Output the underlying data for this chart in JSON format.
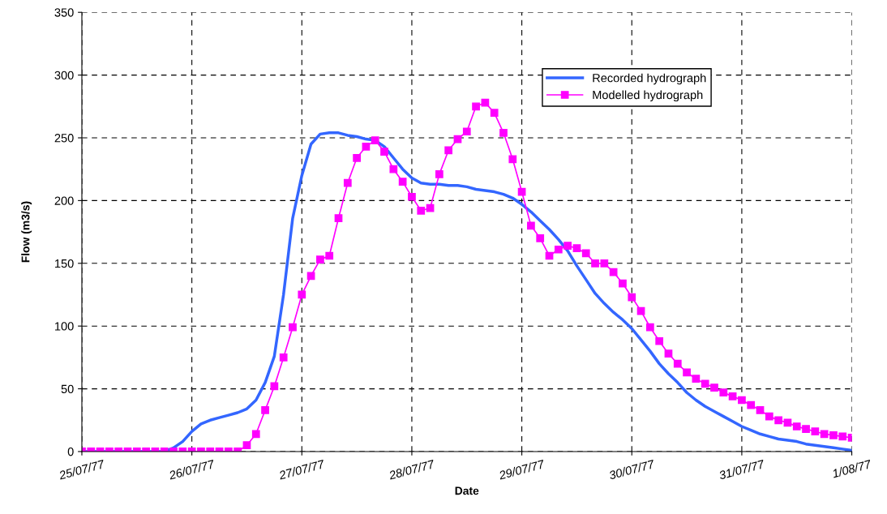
{
  "chart_data": {
    "type": "line",
    "xlabel": "Date",
    "ylabel": "Flow (m3/s)",
    "x": [
      "1977-07-25T00:00",
      "1977-07-25T02:00",
      "1977-07-25T04:00",
      "1977-07-25T06:00",
      "1977-07-25T08:00",
      "1977-07-25T10:00",
      "1977-07-25T12:00",
      "1977-07-25T14:00",
      "1977-07-25T16:00",
      "1977-07-25T18:00",
      "1977-07-25T20:00",
      "1977-07-25T22:00",
      "1977-07-26T00:00",
      "1977-07-26T02:00",
      "1977-07-26T04:00",
      "1977-07-26T06:00",
      "1977-07-26T08:00",
      "1977-07-26T10:00",
      "1977-07-26T12:00",
      "1977-07-26T14:00",
      "1977-07-26T16:00",
      "1977-07-26T18:00",
      "1977-07-26T20:00",
      "1977-07-26T22:00",
      "1977-07-27T00:00",
      "1977-07-27T02:00",
      "1977-07-27T04:00",
      "1977-07-27T06:00",
      "1977-07-27T08:00",
      "1977-07-27T10:00",
      "1977-07-27T12:00",
      "1977-07-27T14:00",
      "1977-07-27T16:00",
      "1977-07-27T18:00",
      "1977-07-27T20:00",
      "1977-07-27T22:00",
      "1977-07-28T00:00",
      "1977-07-28T02:00",
      "1977-07-28T04:00",
      "1977-07-28T06:00",
      "1977-07-28T08:00",
      "1977-07-28T10:00",
      "1977-07-28T12:00",
      "1977-07-28T14:00",
      "1977-07-28T16:00",
      "1977-07-28T18:00",
      "1977-07-28T20:00",
      "1977-07-28T22:00",
      "1977-07-29T00:00",
      "1977-07-29T02:00",
      "1977-07-29T04:00",
      "1977-07-29T06:00",
      "1977-07-29T08:00",
      "1977-07-29T10:00",
      "1977-07-29T12:00",
      "1977-07-29T14:00",
      "1977-07-29T16:00",
      "1977-07-29T18:00",
      "1977-07-29T20:00",
      "1977-07-29T22:00",
      "1977-07-30T00:00",
      "1977-07-30T02:00",
      "1977-07-30T04:00",
      "1977-07-30T06:00",
      "1977-07-30T08:00",
      "1977-07-30T10:00",
      "1977-07-30T12:00",
      "1977-07-30T14:00",
      "1977-07-30T16:00",
      "1977-07-30T18:00",
      "1977-07-30T20:00",
      "1977-07-30T22:00",
      "1977-07-31T00:00",
      "1977-07-31T02:00",
      "1977-07-31T04:00",
      "1977-07-31T06:00",
      "1977-07-31T08:00",
      "1977-07-31T10:00",
      "1977-07-31T12:00",
      "1977-07-31T14:00",
      "1977-07-31T16:00",
      "1977-07-31T18:00",
      "1977-07-31T20:00",
      "1977-07-31T22:00",
      "1977-08-01T00:00"
    ],
    "series": [
      {
        "name": "Recorded hydrograph",
        "color": "#3366ff",
        "marker": "none",
        "values": [
          0,
          0,
          0,
          0,
          0,
          0,
          0,
          0,
          0,
          0,
          3,
          8,
          16,
          22,
          25,
          27,
          29,
          31,
          34,
          41,
          55,
          76,
          125,
          186,
          220,
          245,
          253,
          254,
          254,
          252,
          251,
          249,
          248,
          243,
          234,
          225,
          218,
          214,
          213,
          213,
          212,
          212,
          211,
          209,
          208,
          207,
          205,
          202,
          197,
          191,
          184,
          177,
          169,
          160,
          148,
          137,
          126,
          118,
          111,
          105,
          98,
          89,
          80,
          70,
          62,
          55,
          47,
          41,
          36,
          32,
          28,
          24,
          20,
          17,
          14,
          12,
          10,
          9,
          8,
          6,
          5,
          4,
          3,
          2,
          1
        ]
      },
      {
        "name": "Modelled hydrograph",
        "color": "#ff00ff",
        "marker": "square",
        "values": [
          0,
          0,
          0,
          0,
          0,
          0,
          0,
          0,
          0,
          0,
          0,
          0,
          0,
          0,
          0,
          0,
          0,
          0,
          5,
          14,
          33,
          52,
          75,
          99,
          125,
          140,
          153,
          156,
          186,
          214,
          234,
          243,
          248,
          239,
          225,
          215,
          203,
          192,
          194,
          221,
          240,
          249,
          255,
          275,
          278,
          270,
          254,
          233,
          207,
          180,
          170,
          156,
          161,
          164,
          162,
          158,
          150,
          150,
          143,
          134,
          123,
          112,
          99,
          88,
          78,
          70,
          63,
          58,
          54,
          51,
          47,
          44,
          41,
          37,
          33,
          28,
          25,
          23,
          20,
          18,
          16,
          14,
          13,
          12,
          11
        ]
      }
    ],
    "xlim": [
      "1977-07-25",
      "1977-08-01"
    ],
    "xticks": [
      {
        "value": "1977-07-25",
        "label": "25/07/77"
      },
      {
        "value": "1977-07-26",
        "label": "26/07/77"
      },
      {
        "value": "1977-07-27",
        "label": "27/07/77"
      },
      {
        "value": "1977-07-28",
        "label": "28/07/77"
      },
      {
        "value": "1977-07-29",
        "label": "29/07/77"
      },
      {
        "value": "1977-07-30",
        "label": "30/07/77"
      },
      {
        "value": "1977-07-31",
        "label": "31/07/77"
      },
      {
        "value": "1977-08-01",
        "label": "1/08/77"
      }
    ],
    "ylim": [
      0,
      350
    ],
    "yticks": [
      0,
      50,
      100,
      150,
      200,
      250,
      300,
      350
    ],
    "grid": true,
    "legend": "top right",
    "line_style": "solid"
  }
}
